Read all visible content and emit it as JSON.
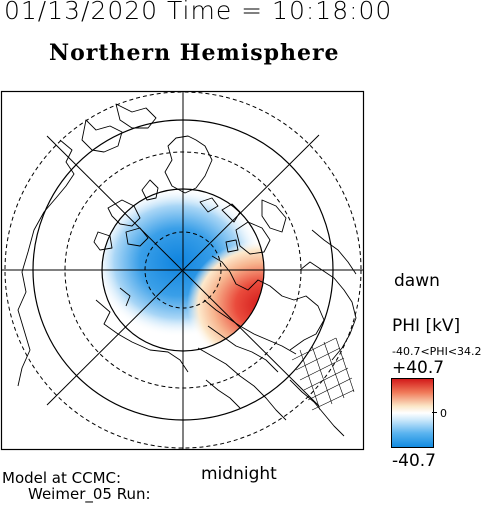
{
  "header": {
    "datetime": "01/13/2020 Time = 10:18:00",
    "hemisphere": "Northern Hemisphere"
  },
  "plot": {
    "labels": {
      "dawn": "dawn",
      "midnight": "midnight"
    }
  },
  "colorbar": {
    "title": "PHI [kV]",
    "range_text": "-40.7<PHI<34.2",
    "max_label": "+40.7",
    "zero_label": "0",
    "min_label": "-40.7",
    "colors": {
      "positive": "#d31a1a",
      "zero": "#ffffff",
      "negative": "#128ae0"
    }
  },
  "footer": {
    "model_line": "Model at CCMC:",
    "run_line": "Weimer_05 Run:"
  }
}
